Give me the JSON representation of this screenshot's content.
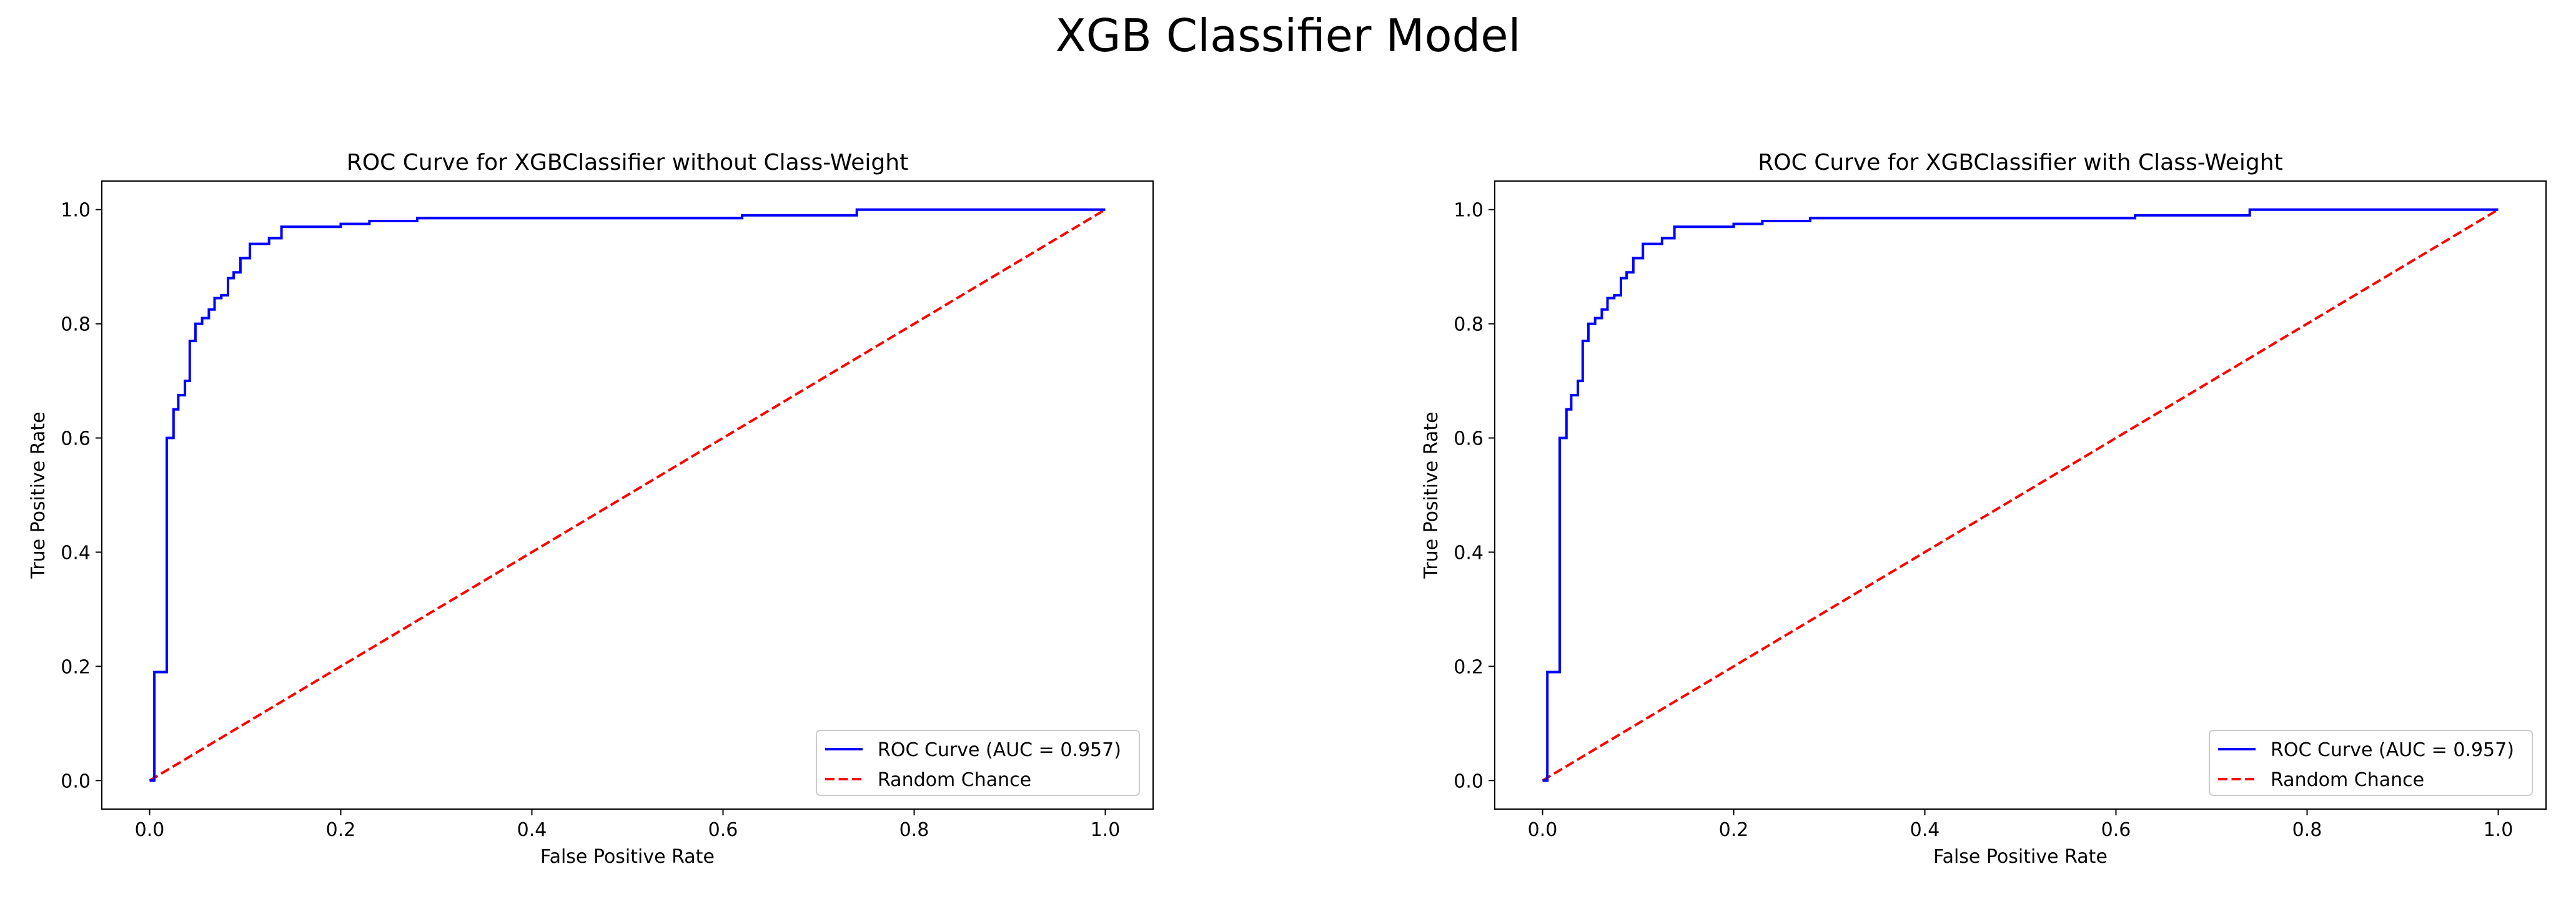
{
  "figure": {
    "suptitle": "XGB Classifier Model"
  },
  "chart_data": [
    {
      "type": "line",
      "title": "ROC Curve for XGBClassifier without Class-Weight",
      "xlabel": "False Positive Rate",
      "ylabel": "True Positive Rate",
      "xlim": [
        -0.05,
        1.05
      ],
      "ylim": [
        -0.05,
        1.05
      ],
      "xticks": [
        0.0,
        0.2,
        0.4,
        0.6,
        0.8,
        1.0
      ],
      "yticks": [
        0.0,
        0.2,
        0.4,
        0.6,
        0.8,
        1.0
      ],
      "xticklabels": [
        "0.0",
        "0.2",
        "0.4",
        "0.6",
        "0.8",
        "1.0"
      ],
      "yticklabels": [
        "0.0",
        "0.2",
        "0.4",
        "0.6",
        "0.8",
        "1.0"
      ],
      "grid": false,
      "legend_position": "lower-right",
      "series": [
        {
          "name": "ROC Curve (AUC = 0.957)",
          "color": "#0000ff",
          "style": "solid",
          "x": [
            0.0,
            0.005,
            0.005,
            0.018,
            0.018,
            0.025,
            0.025,
            0.03,
            0.03,
            0.037,
            0.037,
            0.042,
            0.042,
            0.048,
            0.048,
            0.055,
            0.055,
            0.062,
            0.062,
            0.068,
            0.068,
            0.075,
            0.075,
            0.082,
            0.082,
            0.088,
            0.088,
            0.095,
            0.095,
            0.105,
            0.105,
            0.125,
            0.125,
            0.138,
            0.138,
            0.2,
            0.2,
            0.23,
            0.23,
            0.28,
            0.28,
            0.62,
            0.62,
            0.74,
            0.74,
            1.0
          ],
          "y": [
            0.0,
            0.0,
            0.19,
            0.19,
            0.6,
            0.6,
            0.65,
            0.65,
            0.675,
            0.675,
            0.7,
            0.7,
            0.77,
            0.77,
            0.8,
            0.8,
            0.81,
            0.81,
            0.825,
            0.825,
            0.845,
            0.845,
            0.85,
            0.85,
            0.88,
            0.88,
            0.89,
            0.89,
            0.915,
            0.915,
            0.94,
            0.94,
            0.95,
            0.95,
            0.97,
            0.97,
            0.975,
            0.975,
            0.98,
            0.98,
            0.985,
            0.985,
            0.99,
            0.99,
            1.0,
            1.0
          ]
        },
        {
          "name": "Random Chance",
          "color": "#ff0000",
          "style": "dashed",
          "x": [
            0.0,
            1.0
          ],
          "y": [
            0.0,
            1.0
          ]
        }
      ]
    },
    {
      "type": "line",
      "title": "ROC Curve for XGBClassifier with Class-Weight",
      "xlabel": "False Positive Rate",
      "ylabel": "True Positive Rate",
      "xlim": [
        -0.05,
        1.05
      ],
      "ylim": [
        -0.05,
        1.05
      ],
      "xticks": [
        0.0,
        0.2,
        0.4,
        0.6,
        0.8,
        1.0
      ],
      "yticks": [
        0.0,
        0.2,
        0.4,
        0.6,
        0.8,
        1.0
      ],
      "xticklabels": [
        "0.0",
        "0.2",
        "0.4",
        "0.6",
        "0.8",
        "1.0"
      ],
      "yticklabels": [
        "0.0",
        "0.2",
        "0.4",
        "0.6",
        "0.8",
        "1.0"
      ],
      "grid": false,
      "legend_position": "lower-right",
      "series": [
        {
          "name": "ROC Curve (AUC = 0.957)",
          "color": "#0000ff",
          "style": "solid",
          "x": [
            0.0,
            0.005,
            0.005,
            0.018,
            0.018,
            0.025,
            0.025,
            0.03,
            0.03,
            0.037,
            0.037,
            0.042,
            0.042,
            0.048,
            0.048,
            0.055,
            0.055,
            0.062,
            0.062,
            0.068,
            0.068,
            0.075,
            0.075,
            0.082,
            0.082,
            0.088,
            0.088,
            0.095,
            0.095,
            0.105,
            0.105,
            0.125,
            0.125,
            0.138,
            0.138,
            0.2,
            0.2,
            0.23,
            0.23,
            0.28,
            0.28,
            0.62,
            0.62,
            0.74,
            0.74,
            1.0
          ],
          "y": [
            0.0,
            0.0,
            0.19,
            0.19,
            0.6,
            0.6,
            0.65,
            0.65,
            0.675,
            0.675,
            0.7,
            0.7,
            0.77,
            0.77,
            0.8,
            0.8,
            0.81,
            0.81,
            0.825,
            0.825,
            0.845,
            0.845,
            0.85,
            0.85,
            0.88,
            0.88,
            0.89,
            0.89,
            0.915,
            0.915,
            0.94,
            0.94,
            0.95,
            0.95,
            0.97,
            0.97,
            0.975,
            0.975,
            0.98,
            0.98,
            0.985,
            0.985,
            0.99,
            0.99,
            1.0,
            1.0
          ]
        },
        {
          "name": "Random Chance",
          "color": "#ff0000",
          "style": "dashed",
          "x": [
            0.0,
            1.0
          ],
          "y": [
            0.0,
            1.0
          ]
        }
      ]
    }
  ]
}
